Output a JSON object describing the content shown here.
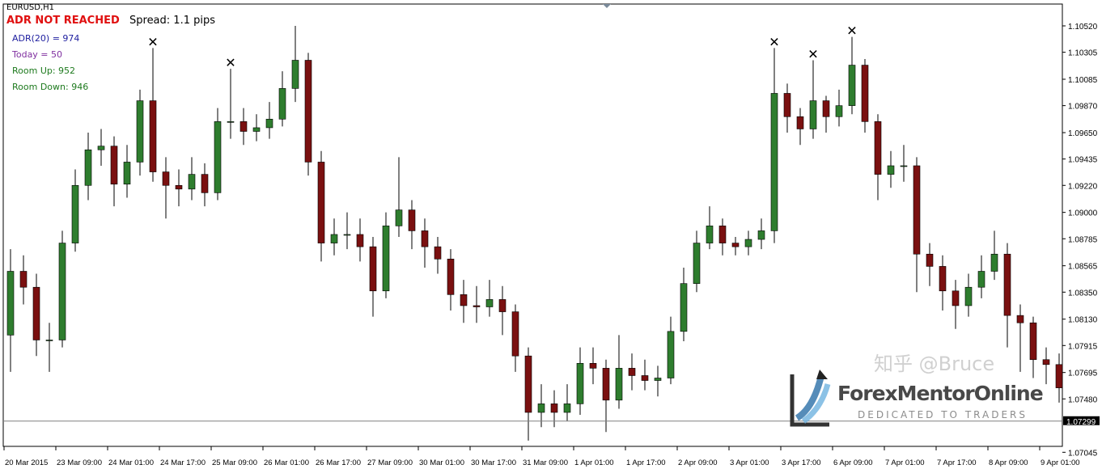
{
  "header": {
    "symbol": "EURUSD,H1",
    "spread_text": "Spread: 1.1 pips",
    "adr_status": "ADR NOT REACHED"
  },
  "indicator": {
    "adr": "ADR(20) = 974",
    "today": "Today = 50",
    "room_up": "Room Up: 952",
    "room_down": "Room Down: 946"
  },
  "colors": {
    "bull": "#2e7d2e",
    "bear": "#7a1010",
    "adr_status": "#e01010",
    "adr": "#2020a0",
    "today": "#8030a0",
    "room": "#1e7a1e",
    "price_line": "#808080"
  },
  "watermark": {
    "zhihu": "知乎 @Bruce",
    "brand": "ForexMentorOnline",
    "tagline": "DEDICATED TO TRADERS"
  },
  "chart_data": {
    "type": "candlestick",
    "title": "EURUSD,H1",
    "ylim": [
      1.0704,
      1.1062
    ],
    "grid": false,
    "y_ticks": [
      "1.10520",
      "1.10305",
      "1.10085",
      "1.09870",
      "1.09650",
      "1.09435",
      "1.09220",
      "1.09000",
      "1.08785",
      "1.08565",
      "1.08350",
      "1.08130",
      "1.07915",
      "1.07695",
      "1.07480",
      "1.07045"
    ],
    "x_ticks": [
      "20 Mar 2015",
      "23 Mar 09:00",
      "24 Mar 01:00",
      "24 Mar 17:00",
      "25 Mar 09:00",
      "26 Mar 01:00",
      "26 Mar 17:00",
      "27 Mar 09:00",
      "30 Mar 01:00",
      "30 Mar 17:00",
      "31 Mar 09:00",
      "1 Apr 01:00",
      "1 Apr 17:00",
      "2 Apr 09:00",
      "3 Apr 01:00",
      "3 Apr 17:00",
      "6 Apr 09:00",
      "7 Apr 01:00",
      "7 Apr 17:00",
      "8 Apr 09:00",
      "9 Apr 01:00"
    ],
    "current_price": "1.07299",
    "first_open": 1.08,
    "close": [
      1.0852,
      1.0839,
      1.0796,
      1.0796,
      1.0875,
      1.0922,
      1.0951,
      1.0954,
      1.0923,
      1.0941,
      1.0991,
      1.0933,
      1.0922,
      1.0919,
      1.0931,
      1.0916,
      1.0974,
      1.0974,
      1.0966,
      1.0969,
      1.0976,
      1.1001,
      1.1024,
      1.0941,
      1.0875,
      1.0882,
      1.0882,
      1.0872,
      1.0836,
      1.0889,
      1.0902,
      1.0885,
      1.0872,
      1.0862,
      1.0833,
      1.0824,
      1.0823,
      1.0829,
      1.0819,
      1.0783,
      1.0737,
      1.0744,
      1.0737,
      1.0744,
      1.0777,
      1.0773,
      1.0747,
      1.0773,
      1.0767,
      1.0763,
      1.0765,
      1.0803,
      1.0842,
      1.0875,
      1.0889,
      1.0875,
      1.0872,
      1.0878,
      1.0885,
      1.0997,
      1.0978,
      1.0968,
      1.0991,
      1.0978,
      1.0987,
      1.102,
      1.0974,
      1.0931,
      1.0938,
      1.0938,
      1.0866,
      1.0856,
      1.0836,
      1.0824,
      1.0839,
      1.0852,
      1.0866,
      1.0816,
      1.081,
      1.078,
      1.0776,
      1.0757
    ],
    "high": [
      1.087,
      1.0865,
      1.085,
      1.081,
      1.0885,
      1.0935,
      1.0965,
      1.0968,
      1.0962,
      1.0955,
      1.1,
      1.1034,
      1.0945,
      1.0935,
      1.0945,
      1.094,
      1.0985,
      1.1017,
      1.0985,
      1.098,
      1.099,
      1.1015,
      1.1052,
      1.103,
      1.095,
      1.0895,
      1.09,
      1.0895,
      1.088,
      1.09,
      1.0945,
      1.091,
      1.0895,
      1.088,
      1.087,
      1.0845,
      1.084,
      1.0845,
      1.084,
      1.0825,
      1.079,
      1.076,
      1.0755,
      1.076,
      1.079,
      1.079,
      1.078,
      1.08,
      1.0785,
      1.078,
      1.0775,
      1.0815,
      1.0855,
      1.0885,
      1.0905,
      1.0895,
      1.088,
      1.0885,
      1.0895,
      1.1034,
      1.1005,
      1.0985,
      1.1024,
      1.0995,
      1.1,
      1.1043,
      1.1025,
      1.098,
      1.095,
      1.0955,
      1.0945,
      1.0875,
      1.0865,
      1.0845,
      1.085,
      1.0865,
      1.0885,
      1.0875,
      1.0825,
      1.0815,
      1.079,
      1.0785
    ],
    "low": [
      1.077,
      1.0825,
      1.0783,
      1.077,
      1.079,
      1.0868,
      1.091,
      1.0938,
      1.0905,
      1.0912,
      1.093,
      1.0925,
      1.0895,
      1.0905,
      1.091,
      1.0905,
      1.091,
      1.096,
      1.0955,
      1.0958,
      1.096,
      1.097,
      1.099,
      1.093,
      1.086,
      1.0865,
      1.087,
      1.086,
      1.0815,
      1.083,
      1.088,
      1.087,
      1.0855,
      1.085,
      1.082,
      1.081,
      1.081,
      1.0815,
      1.08,
      1.077,
      1.0714,
      1.0725,
      1.0725,
      1.073,
      1.0735,
      1.076,
      1.0721,
      1.074,
      1.0755,
      1.0755,
      1.075,
      1.076,
      1.0795,
      1.0835,
      1.087,
      1.0865,
      1.0865,
      1.0865,
      1.087,
      1.0875,
      1.0965,
      1.0955,
      1.096,
      1.0965,
      1.097,
      1.098,
      1.0965,
      1.091,
      1.092,
      1.0925,
      1.0835,
      1.084,
      1.082,
      1.0805,
      1.0815,
      1.083,
      1.0845,
      1.079,
      1.077,
      1.0765,
      1.076,
      1.0745
    ],
    "x_markers_at_candles": [
      11,
      17,
      59,
      62,
      65
    ]
  }
}
